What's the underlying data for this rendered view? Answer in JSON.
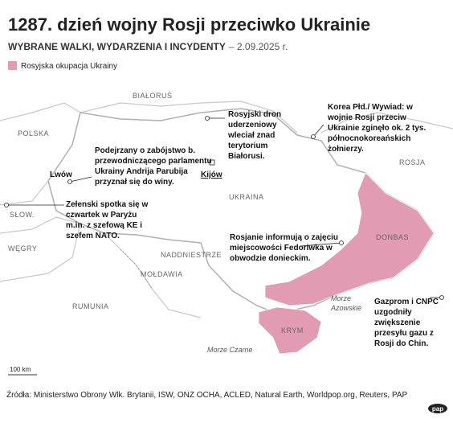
{
  "header": {
    "title": "1287. dzień wojny Rosji przeciwko Ukrainie",
    "subtitle": "WYBRANE WALKI, WYDARZENIA I INCYDENTY",
    "date": "– 2.09.2025 r."
  },
  "legend": {
    "label": "Rosyjska okupacja Ukrainy"
  },
  "places": [
    "BIAŁORUŚ",
    "POLSKA",
    "ROSJA",
    "UKRAINA",
    "SŁOW.",
    "WĘGRY",
    "NADDNIESTRZE",
    "MOŁDAWIA",
    "RUMUNIA",
    "KRYM",
    "DONBAS",
    "Lwów",
    "Kijów"
  ],
  "seas": [
    [
      "Morze",
      "Azowskie"
    ],
    [
      "Morze Czarne"
    ]
  ],
  "annotations": [
    {
      "lines": [
        "Rosyjski dron",
        "uderzeniowy",
        "wleciał znad",
        "terytorium",
        "Białorusi."
      ]
    },
    {
      "lines": [
        "Korea Płd./ Wywiad: w",
        "wojnie Rosji przeciw",
        "Ukrainie zginęło ok. 2 tys.",
        "północnokoreańskich",
        "żołnierzy."
      ]
    },
    {
      "lines": [
        "Podejrzany o zabójstwo b.",
        "przewodniczącego parlamentu",
        "Ukrainy Andrija Parubija",
        "przyznał się do winy."
      ]
    },
    {
      "lines": [
        "Zełenski spotka się w",
        "czwartek w Paryżu",
        "m.in. z szefową KE i",
        "szefem NATO."
      ]
    },
    {
      "lines": [
        "Rosjanie informują o zajęciu",
        "miejscowości Fedoriwka w",
        "obwodzie donieckim."
      ]
    },
    {
      "lines": [
        "Gazprom i CNPC",
        "uzgodniły",
        "zwiększenie",
        "przesyłu gazu z",
        "Rosji do Chin."
      ]
    }
  ],
  "scale": "100 km",
  "source": "Źródła: Ministerstwo Obrony Wlk. Brytanii, ISW, ONZ OCHA, ACLED, Natural Earth, Worldpop.org, Reuters, PAP",
  "logo": "pap"
}
